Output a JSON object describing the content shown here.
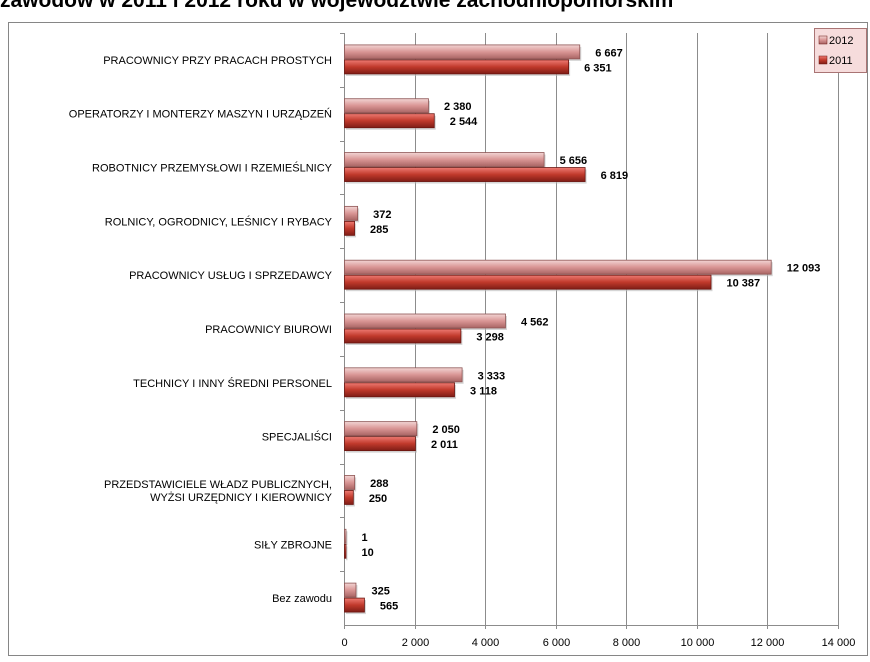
{
  "chart_data": {
    "type": "bar",
    "orientation": "horizontal",
    "title": "zawodów w 2011 i 2012 roku w województwie zachodniopomorskim",
    "xlim": [
      0,
      14000
    ],
    "x_ticks": [
      "0",
      "2 000",
      "4 000",
      "6 000",
      "8 000",
      "10 000",
      "12 000",
      "14 000"
    ],
    "grid": true,
    "legend_position": "top-right",
    "categories": [
      "PRACOWNICY PRZY PRACACH PROSTYCH",
      "OPERATORZY I MONTERZY MASZYN I URZĄDZEŃ",
      "ROBOTNICY PRZEMYSŁOWI I RZEMIEŚLNICY",
      "ROLNICY, OGRODNICY, LEŚNICY I RYBACY",
      "PRACOWNICY USŁUG I SPRZEDAWCY",
      "PRACOWNICY BIUROWI",
      "TECHNICY I INNY ŚREDNI PERSONEL",
      "SPECJALIŚCI",
      "PRZEDSTAWICIELE WŁADZ PUBLICZNYCH,\nWYŻSI URZĘDNICY I KIEROWNICY",
      "SIŁY ZBROJNE",
      "Bez zawodu"
    ],
    "series": [
      {
        "name": "2012",
        "color": "#d99594",
        "values": [
          6667,
          2380,
          5656,
          372,
          12093,
          4562,
          3333,
          2050,
          288,
          1,
          325
        ],
        "labels": [
          "6 667",
          "2 380",
          "5 656",
          "372",
          "12 093",
          "4 562",
          "3 333",
          "2 050",
          "288",
          "1",
          "325"
        ]
      },
      {
        "name": "2011",
        "color": "#c0392b",
        "values": [
          6351,
          2544,
          6819,
          285,
          10387,
          3298,
          3118,
          2011,
          250,
          10,
          565
        ],
        "labels": [
          "6 351",
          "2 544",
          "6 819",
          "285",
          "10 387",
          "3 298",
          "3 118",
          "2 011",
          "250",
          "10",
          "565"
        ]
      }
    ]
  }
}
